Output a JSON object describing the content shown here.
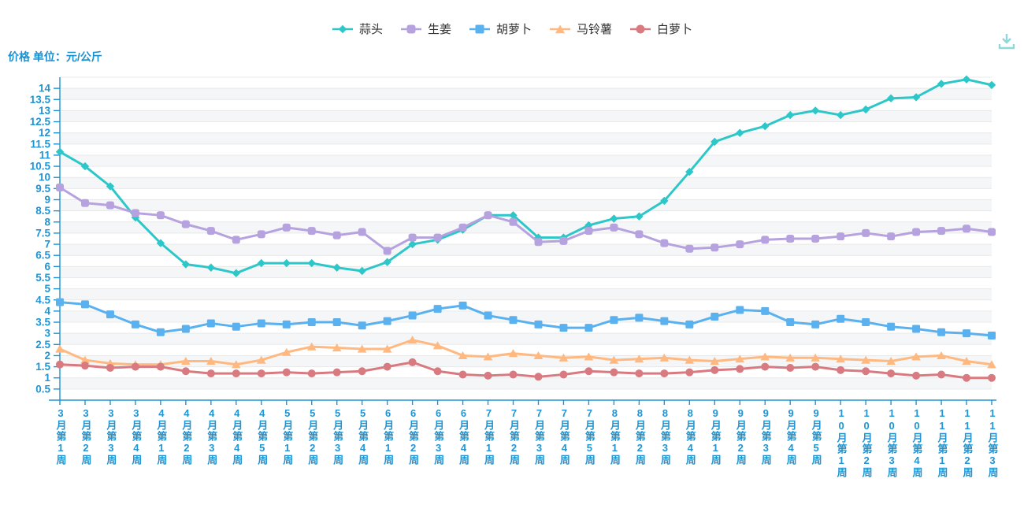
{
  "title": {
    "text": "价格 单位：元/公斤"
  },
  "toolbar": {
    "download_tooltip": "下载"
  },
  "colors": {
    "axis": "#2095d2",
    "grid_line": "#e9e9e9",
    "band_alt": "#f5f6f7",
    "legend_text": "#333333",
    "download_icon": "#8fd8da",
    "title_text": "#1b91d0"
  },
  "chart_data": {
    "type": "line",
    "title": "价格 单位：元/公斤",
    "ylabel": "价格(元/公斤)",
    "xlabel": "周",
    "legend_position": "top",
    "grid": true,
    "ylim": [
      0,
      14.5
    ],
    "y_tick_step": 0.5,
    "y_label_min": 0.5,
    "y_label_max": 14,
    "categories": [
      "3月第1周",
      "3月第2周",
      "3月第3周",
      "3月第4周",
      "4月第1周",
      "4月第2周",
      "4月第3周",
      "4月第4周",
      "4月第5周",
      "5月第1周",
      "5月第2周",
      "5月第3周",
      "5月第4周",
      "6月第1周",
      "6月第2周",
      "6月第3周",
      "6月第4周",
      "7月第1周",
      "7月第2周",
      "7月第3周",
      "7月第4周",
      "7月第5周",
      "8月第1周",
      "8月第2周",
      "8月第3周",
      "8月第4周",
      "9月第1周",
      "9月第2周",
      "9月第3周",
      "9月第4周",
      "9月第5周",
      "10月第1周",
      "10月第2周",
      "10月第3周",
      "10月第4周",
      "11月第1周",
      "11月第2周",
      "11月第3周"
    ],
    "series": [
      {
        "name": "蒜头",
        "color": "#2ec7c9",
        "symbol": "diamond",
        "values": [
          11.15,
          10.5,
          9.6,
          8.2,
          7.05,
          6.1,
          5.95,
          5.7,
          6.15,
          6.15,
          6.15,
          5.95,
          5.8,
          6.2,
          7.0,
          7.2,
          7.65,
          8.3,
          8.3,
          7.3,
          7.3,
          7.85,
          8.15,
          8.25,
          8.95,
          10.25,
          11.6,
          12.0,
          12.3,
          12.8,
          13.0,
          12.8,
          13.05,
          13.55,
          13.6,
          14.2,
          14.4,
          14.15
        ]
      },
      {
        "name": "生姜",
        "color": "#b6a2de",
        "symbol": "roundRect",
        "values": [
          9.55,
          8.85,
          8.75,
          8.4,
          8.3,
          7.9,
          7.6,
          7.2,
          7.45,
          7.75,
          7.6,
          7.4,
          7.55,
          6.7,
          7.3,
          7.3,
          7.75,
          8.3,
          8.0,
          7.1,
          7.15,
          7.6,
          7.75,
          7.45,
          7.05,
          6.8,
          6.85,
          7.0,
          7.2,
          7.25,
          7.25,
          7.35,
          7.5,
          7.35,
          7.55,
          7.6,
          7.7,
          7.55
        ]
      },
      {
        "name": "胡萝卜",
        "color": "#5ab1ef",
        "symbol": "rect",
        "values": [
          4.4,
          4.3,
          3.85,
          3.4,
          3.05,
          3.2,
          3.45,
          3.3,
          3.45,
          3.4,
          3.5,
          3.5,
          3.35,
          3.55,
          3.8,
          4.1,
          4.25,
          3.8,
          3.6,
          3.4,
          3.25,
          3.25,
          3.6,
          3.7,
          3.55,
          3.4,
          3.75,
          4.05,
          4.0,
          3.5,
          3.4,
          3.65,
          3.5,
          3.3,
          3.2,
          3.05,
          3.0,
          2.9
        ]
      },
      {
        "name": "马铃薯",
        "color": "#ffb980",
        "symbol": "triangle",
        "values": [
          2.3,
          1.8,
          1.65,
          1.6,
          1.6,
          1.75,
          1.75,
          1.6,
          1.8,
          2.15,
          2.4,
          2.35,
          2.3,
          2.3,
          2.7,
          2.45,
          2.0,
          1.95,
          2.1,
          2.0,
          1.9,
          1.95,
          1.8,
          1.85,
          1.9,
          1.8,
          1.75,
          1.85,
          1.95,
          1.9,
          1.9,
          1.85,
          1.8,
          1.75,
          1.95,
          2.0,
          1.75,
          1.6
        ]
      },
      {
        "name": "白萝卜",
        "color": "#d87a80",
        "symbol": "circle",
        "values": [
          1.6,
          1.55,
          1.45,
          1.5,
          1.5,
          1.3,
          1.2,
          1.2,
          1.2,
          1.25,
          1.2,
          1.25,
          1.3,
          1.5,
          1.7,
          1.3,
          1.15,
          1.1,
          1.15,
          1.05,
          1.15,
          1.3,
          1.25,
          1.2,
          1.2,
          1.25,
          1.35,
          1.4,
          1.5,
          1.45,
          1.5,
          1.35,
          1.3,
          1.2,
          1.1,
          1.15,
          1.0,
          1.0
        ]
      }
    ]
  }
}
